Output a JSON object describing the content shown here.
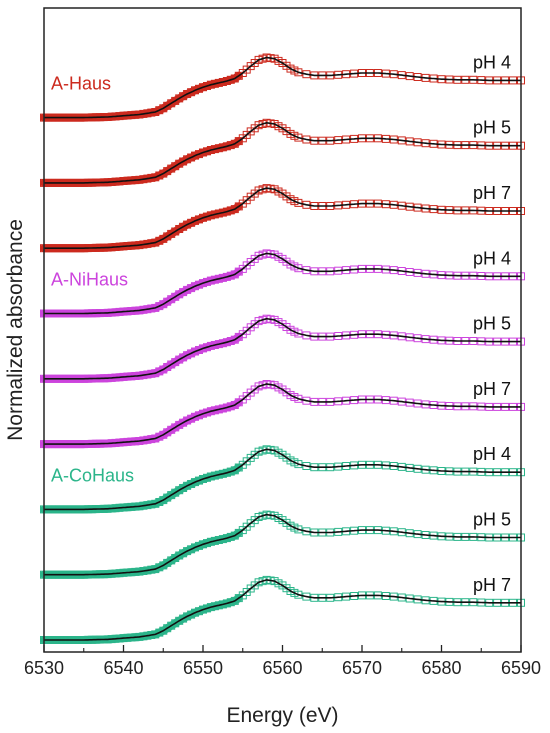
{
  "chart_data": {
    "type": "line",
    "title": "",
    "xlabel": "Energy (eV)",
    "ylabel": "Normalized absorbance",
    "xlim": [
      6530,
      6590
    ],
    "xticks": [
      6530,
      6540,
      6550,
      6560,
      6570,
      6580,
      6590
    ],
    "y_ticks_shown": false,
    "grid": false,
    "markers": "open-square (experimental) with black fit line",
    "groups": [
      {
        "name": "A-Haus",
        "color": "#cc2a1e",
        "label_row": 0
      },
      {
        "name": "A-NiHaus",
        "color": "#cc44dd",
        "label_row": 3
      },
      {
        "name": "A-CoHaus",
        "color": "#2bb58a",
        "label_row": 6
      }
    ],
    "series": [
      {
        "group": "A-Haus",
        "label": "pH 4",
        "offset": 8
      },
      {
        "group": "A-Haus",
        "label": "pH 5",
        "offset": 7
      },
      {
        "group": "A-Haus",
        "label": "pH 7",
        "offset": 6
      },
      {
        "group": "A-NiHaus",
        "label": "pH 4",
        "offset": 5
      },
      {
        "group": "A-NiHaus",
        "label": "pH 5",
        "offset": 4
      },
      {
        "group": "A-NiHaus",
        "label": "pH 7",
        "offset": 3
      },
      {
        "group": "A-CoHaus",
        "label": "pH 4",
        "offset": 2
      },
      {
        "group": "A-CoHaus",
        "label": "pH 5",
        "offset": 1
      },
      {
        "group": "A-CoHaus",
        "label": "pH 7",
        "offset": 0
      }
    ],
    "spectrum_energy": [
      6530,
      6535,
      6538,
      6540,
      6542,
      6544,
      6545,
      6546,
      6547,
      6548,
      6549,
      6550,
      6551,
      6552,
      6553,
      6554,
      6555,
      6556,
      6557,
      6558,
      6559,
      6560,
      6561,
      6562,
      6563,
      6564,
      6566,
      6568,
      6570,
      6572,
      6574,
      6576,
      6578,
      6580,
      6582,
      6584,
      6586,
      6588,
      6590
    ],
    "spectrum_normalized_absorbance": [
      0.0,
      0.0,
      0.01,
      0.03,
      0.05,
      0.09,
      0.15,
      0.23,
      0.31,
      0.38,
      0.44,
      0.49,
      0.53,
      0.56,
      0.59,
      0.63,
      0.72,
      0.83,
      0.93,
      0.97,
      0.95,
      0.88,
      0.79,
      0.73,
      0.7,
      0.68,
      0.68,
      0.7,
      0.72,
      0.72,
      0.7,
      0.67,
      0.64,
      0.62,
      0.61,
      0.61,
      0.6,
      0.6,
      0.6
    ]
  }
}
